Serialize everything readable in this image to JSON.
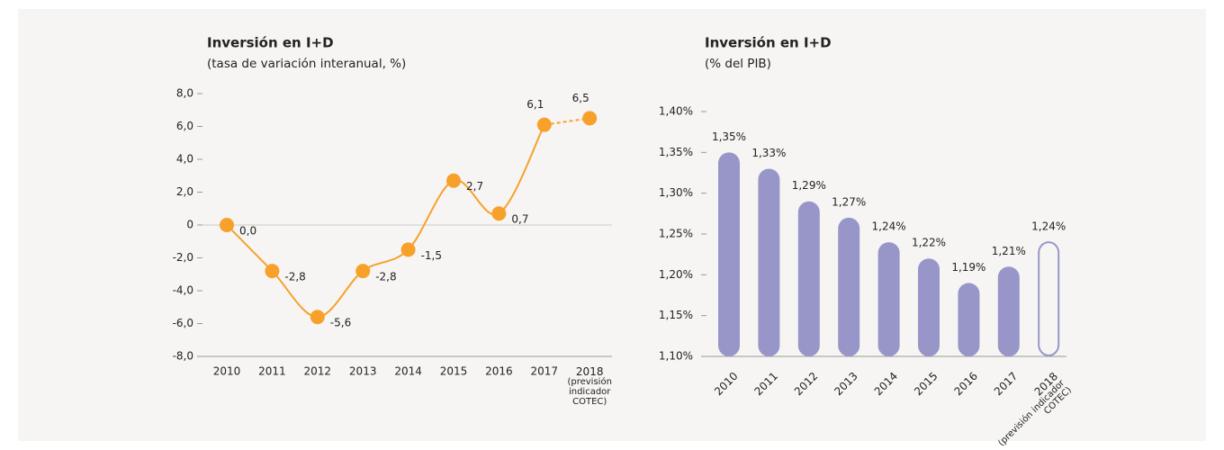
{
  "chart_data": [
    {
      "type": "line",
      "title": "Inversión en I+D",
      "subtitle": "(tasa de variación interanual, %)",
      "categories": [
        "2010",
        "2011",
        "2012",
        "2013",
        "2014",
        "2015",
        "2016",
        "2017",
        "2018\n(previsión\nindicador\nCOTEC)"
      ],
      "values": [
        0,
        -2.8,
        -5.6,
        -2.8,
        -1.5,
        2.7,
        0.7,
        6.1,
        6.5
      ],
      "value_labels": [
        "0,0",
        "-2,8",
        "-5,6",
        "-2,8",
        "-1,5",
        "2,7",
        "0,7",
        "6,1",
        "6,5"
      ],
      "color": "#f7a12b",
      "ylim": [
        -8,
        8
      ],
      "yticks": [
        {
          "value": -8,
          "label": "-8,0"
        },
        {
          "value": -6,
          "label": "-6,0"
        },
        {
          "value": -4,
          "label": "-4,0"
        },
        {
          "value": -2,
          "label": "-2,0"
        },
        0,
        {
          "value": 2,
          "label": "2,0"
        },
        {
          "value": 4,
          "label": "4,0"
        },
        {
          "value": 6,
          "label": "6,0"
        },
        {
          "value": 8,
          "label": "8,0"
        }
      ]
    },
    {
      "type": "bar",
      "title": "Inversión en I+D",
      "subtitle": "(% del PIB)",
      "categories": [
        "2010",
        "2011",
        "2012",
        "2013",
        "2014",
        "2015",
        "2016",
        "2017",
        "2018\n(previsión indicador\nCOTEC)"
      ],
      "values": [
        1.35,
        1.33,
        1.29,
        1.27,
        1.24,
        1.22,
        1.19,
        1.21,
        1.24
      ],
      "value_labels": [
        "1,35%",
        "1,33%",
        "1,29%",
        "1,27%",
        "1,24%",
        "1,22%",
        "1,19%",
        "1,21%",
        "1,24%"
      ],
      "color": "#9896c8",
      "ylim": [
        1.1,
        1.4
      ],
      "yticks": [
        {
          "value": 1.1,
          "label": "1,10%"
        },
        {
          "value": 1.15,
          "label": "1,15%"
        },
        {
          "value": 1.2,
          "label": "1,20%"
        },
        {
          "value": 1.25,
          "label": "1,25%"
        },
        {
          "value": 1.3,
          "label": "1,30%"
        },
        {
          "value": 1.35,
          "label": "1,35%"
        },
        {
          "value": 1.4,
          "label": "1,40%"
        }
      ]
    }
  ]
}
